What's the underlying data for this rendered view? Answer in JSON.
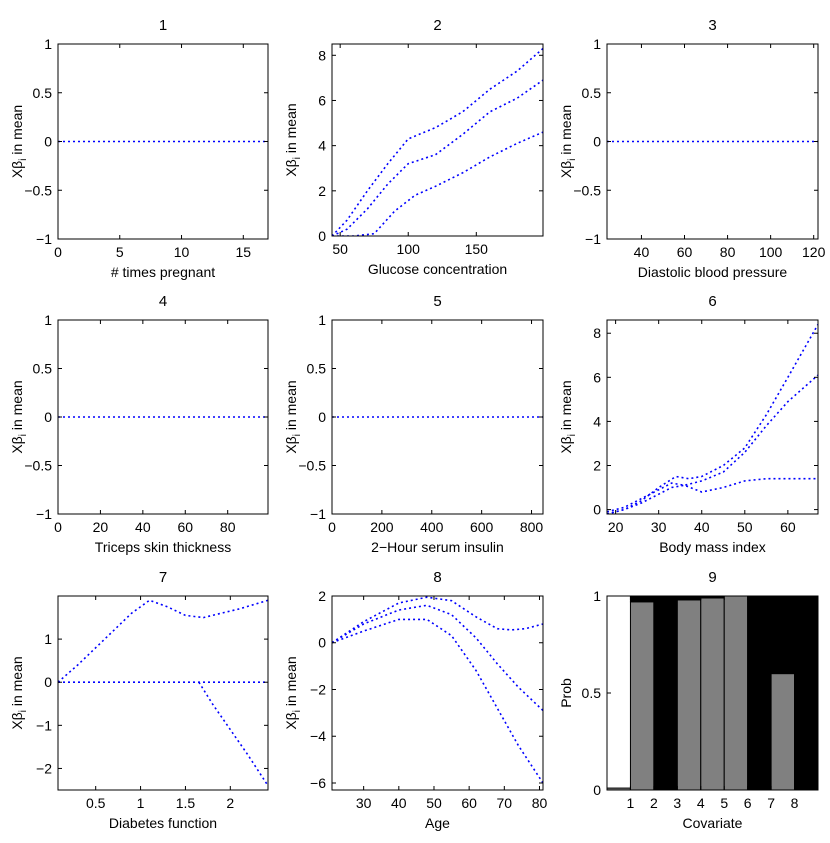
{
  "style": {
    "series_color": "#0000ff",
    "axis_color": "#000000",
    "bar_main_color": "#808080",
    "bar_top_color": "#000000"
  },
  "chart_data": [
    {
      "type": "line",
      "title": "1",
      "xlabel": "# times pregnant",
      "ylabel": "Xβ",
      "ylabel_sub": "i",
      "ylabel_rest": " in mean",
      "xlim": [
        0,
        17
      ],
      "ylim": [
        -1,
        1
      ],
      "xticks": [
        0,
        5,
        10,
        15
      ],
      "yticks": [
        -1,
        -0.5,
        0,
        0.5,
        1
      ],
      "series": [
        {
          "x": [
            0,
            4,
            8,
            12,
            17
          ],
          "y": [
            0,
            0,
            0,
            0,
            0
          ]
        }
      ]
    },
    {
      "type": "line",
      "title": "2",
      "xlabel": "Glucose concentration",
      "ylabel": "Xβ",
      "ylabel_sub": "i",
      "ylabel_rest": " in mean",
      "xlim": [
        44,
        199
      ],
      "ylim": [
        0,
        8.5
      ],
      "xticks": [
        50,
        100,
        150
      ],
      "yticks": [
        0,
        2,
        4,
        6,
        8
      ],
      "series": [
        {
          "x": [
            44,
            55,
            70,
            85,
            100,
            120,
            140,
            160,
            180,
            199
          ],
          "y": [
            0,
            0.7,
            2.0,
            3.2,
            4.3,
            4.8,
            5.5,
            6.5,
            7.3,
            8.3
          ]
        },
        {
          "x": [
            44,
            55,
            70,
            85,
            100,
            120,
            140,
            160,
            180,
            199
          ],
          "y": [
            0,
            0.3,
            1.2,
            2.3,
            3.2,
            3.6,
            4.5,
            5.5,
            6.1,
            6.9
          ]
        },
        {
          "x": [
            44,
            60,
            75,
            90,
            105,
            120,
            140,
            160,
            180,
            199
          ],
          "y": [
            0,
            0,
            0.1,
            1.1,
            1.8,
            2.2,
            2.8,
            3.5,
            4.1,
            4.6
          ]
        }
      ]
    },
    {
      "type": "line",
      "title": "3",
      "xlabel": "Diastolic blood pressure",
      "ylabel": "Xβ",
      "ylabel_sub": "i",
      "ylabel_rest": " in mean",
      "xlim": [
        24,
        122
      ],
      "ylim": [
        -1,
        1
      ],
      "xticks": [
        40,
        60,
        80,
        100,
        120
      ],
      "yticks": [
        -1,
        -0.5,
        0,
        0.5,
        1
      ],
      "series": [
        {
          "x": [
            24,
            50,
            80,
            100,
            122
          ],
          "y": [
            0,
            0,
            0,
            0,
            0
          ]
        }
      ]
    },
    {
      "type": "line",
      "title": "4",
      "xlabel": "Triceps skin thickness",
      "ylabel": "Xβ",
      "ylabel_sub": "i",
      "ylabel_rest": " in mean",
      "xlim": [
        0,
        99
      ],
      "ylim": [
        -1,
        1
      ],
      "xticks": [
        0,
        20,
        40,
        60,
        80
      ],
      "yticks": [
        -1,
        -0.5,
        0,
        0.5,
        1
      ],
      "series": [
        {
          "x": [
            0,
            25,
            50,
            75,
            99
          ],
          "y": [
            0,
            0,
            0,
            0,
            0
          ]
        }
      ]
    },
    {
      "type": "line",
      "title": "5",
      "xlabel": "2−Hour serum insulin",
      "ylabel": "Xβ",
      "ylabel_sub": "i",
      "ylabel_rest": " in mean",
      "xlim": [
        0,
        846
      ],
      "ylim": [
        -1,
        1
      ],
      "xticks": [
        0,
        200,
        400,
        600,
        800
      ],
      "yticks": [
        -1,
        -0.5,
        0,
        0.5,
        1
      ],
      "series": [
        {
          "x": [
            0,
            200,
            400,
            600,
            846
          ],
          "y": [
            0,
            0,
            0,
            0,
            0
          ]
        }
      ]
    },
    {
      "type": "line",
      "title": "6",
      "xlabel": "Body mass index",
      "ylabel": "Xβ",
      "ylabel_sub": "i",
      "ylabel_rest": " in mean",
      "xlim": [
        18,
        67
      ],
      "ylim": [
        -0.2,
        8.6
      ],
      "xticks": [
        20,
        30,
        40,
        50,
        60
      ],
      "yticks": [
        0,
        2,
        4,
        6,
        8
      ],
      "series": [
        {
          "x": [
            18,
            22,
            26,
            30,
            34,
            37,
            40,
            45,
            50,
            55,
            60,
            67
          ],
          "y": [
            -0.2,
            0,
            0.4,
            1.0,
            1.5,
            1.4,
            1.5,
            2.0,
            2.8,
            4.3,
            6.0,
            8.4
          ]
        },
        {
          "x": [
            18,
            22,
            26,
            30,
            33,
            36,
            40,
            45,
            50,
            55,
            60,
            67
          ],
          "y": [
            -0.1,
            0.1,
            0.5,
            0.9,
            1.2,
            1.1,
            1.3,
            1.7,
            2.6,
            3.8,
            4.9,
            6.1
          ]
        },
        {
          "x": [
            18,
            22,
            26,
            30,
            33,
            36,
            40,
            45,
            50,
            55,
            67
          ],
          "y": [
            -0.2,
            0,
            0.3,
            0.7,
            1.0,
            1.1,
            0.8,
            1.0,
            1.3,
            1.4,
            1.4
          ]
        }
      ]
    },
    {
      "type": "line",
      "title": "7",
      "xlabel": "Diabetes function",
      "ylabel": "Xβ",
      "ylabel_sub": "i",
      "ylabel_rest": " in mean",
      "xlim": [
        0.08,
        2.42
      ],
      "ylim": [
        -2.5,
        2
      ],
      "xticks": [
        0.5,
        1,
        1.5,
        2
      ],
      "yticks": [
        -2,
        -1,
        0,
        1
      ],
      "series": [
        {
          "x": [
            0.08,
            0.3,
            0.6,
            0.9,
            1.1,
            1.3,
            1.5,
            1.7,
            1.9,
            2.1,
            2.42
          ],
          "y": [
            0,
            0.4,
            1.0,
            1.6,
            1.9,
            1.75,
            1.55,
            1.5,
            1.6,
            1.7,
            1.9
          ]
        },
        {
          "x": [
            0.08,
            0.5,
            1.0,
            1.5,
            2.0,
            2.42
          ],
          "y": [
            0,
            0,
            0,
            0,
            0,
            0
          ]
        },
        {
          "x": [
            1.65,
            1.8,
            2.0,
            2.2,
            2.42
          ],
          "y": [
            0,
            -0.5,
            -1.1,
            -1.7,
            -2.4
          ]
        }
      ]
    },
    {
      "type": "line",
      "title": "8",
      "xlabel": "Age",
      "ylabel": "Xβ",
      "ylabel_sub": "i",
      "ylabel_rest": " in mean",
      "xlim": [
        21,
        81
      ],
      "ylim": [
        -6.3,
        2
      ],
      "xticks": [
        30,
        40,
        50,
        60,
        70,
        80
      ],
      "yticks": [
        -6,
        -4,
        -2,
        0,
        2
      ],
      "series": [
        {
          "x": [
            21,
            30,
            40,
            48,
            55,
            62,
            68,
            72,
            76,
            81
          ],
          "y": [
            0,
            0.9,
            1.7,
            1.95,
            1.8,
            1.1,
            0.6,
            0.55,
            0.6,
            0.8
          ]
        },
        {
          "x": [
            21,
            30,
            40,
            48,
            55,
            62,
            68,
            74,
            81
          ],
          "y": [
            0,
            0.8,
            1.4,
            1.6,
            1.2,
            0.2,
            -0.9,
            -1.9,
            -2.9
          ]
        },
        {
          "x": [
            21,
            30,
            40,
            48,
            55,
            62,
            68,
            74,
            81
          ],
          "y": [
            0,
            0.5,
            1.0,
            1.0,
            0.3,
            -1.2,
            -2.8,
            -4.4,
            -6.0
          ]
        }
      ]
    },
    {
      "type": "bar",
      "title": "9",
      "xlabel": "Covariate",
      "ylabel": "Prob",
      "xlim": [
        0,
        9
      ],
      "ylim": [
        0,
        1
      ],
      "xticks": [
        1,
        2,
        3,
        4,
        5,
        6,
        7,
        8
      ],
      "yticks": [
        0,
        0.5,
        1
      ],
      "ytick_labels": [
        "0",
        "0.5",
        "1"
      ],
      "bar_positions": [
        0.5,
        1.5,
        2.5,
        3.5,
        4.5,
        5.5,
        6.5,
        7.5,
        8.5
      ],
      "bar_width": 1,
      "series": [
        {
          "values": [
            0.01,
            0.97,
            0.0,
            0.98,
            0.99,
            1.0,
            0.0,
            0.6,
            0.0
          ]
        },
        {
          "values": [
            0.0,
            0.03,
            1.0,
            0.02,
            0.01,
            0.0,
            1.0,
            0.4,
            1.0
          ]
        }
      ]
    }
  ]
}
